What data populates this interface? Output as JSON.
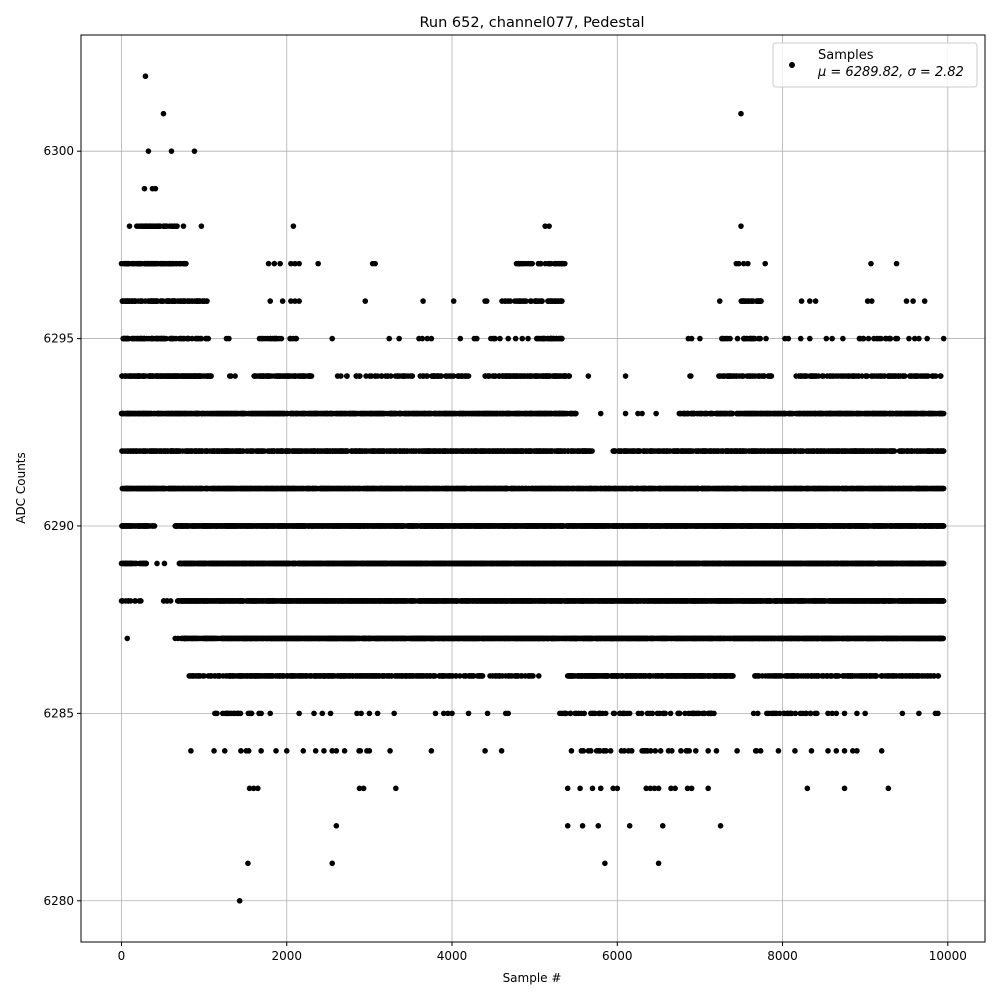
{
  "chart_data": {
    "type": "scatter",
    "title": "Run 652, channel077, Pedestal",
    "xlabel": "Sample #",
    "ylabel": "ADC Counts",
    "xlim": [
      -490,
      10450
    ],
    "ylim": [
      6278.9,
      6303.1
    ],
    "xticks": [
      0,
      2000,
      4000,
      6000,
      8000,
      10000
    ],
    "yticks": [
      6280,
      6285,
      6290,
      6295,
      6300
    ],
    "grid": true,
    "marker_color": "#000000",
    "grid_color": "#b0b0b0",
    "legend": {
      "position": "top-right",
      "label": "Samples",
      "stats": "μ = 6289.82, σ = 2.82"
    },
    "levels": [
      {
        "y": 6302,
        "ranges": [],
        "points": [
          290
        ]
      },
      {
        "y": 6301,
        "ranges": [],
        "points": [
          508,
          7497
        ]
      },
      {
        "y": 6300,
        "ranges": [],
        "points": [
          326,
          605,
          883
        ]
      },
      {
        "y": 6299,
        "ranges": [],
        "points": [
          278,
          375,
          411
        ]
      },
      {
        "y": 6298,
        "ranges": [
          [
            180,
            470,
            0.5
          ],
          [
            508,
            690,
            0.4
          ]
        ],
        "points": [
          97,
          750,
          967,
          2080,
          5127,
          5175,
          7497
        ]
      },
      {
        "y": 6297,
        "ranges": [
          [
            0,
            780,
            0.5
          ],
          [
            4760,
            5370,
            0.25
          ]
        ],
        "points": [
          1780,
          1850,
          1920,
          2050,
          2100,
          2150,
          2380,
          3040,
          3070,
          7440,
          7470,
          7530,
          7580,
          7790,
          9070,
          9380
        ]
      },
      {
        "y": 6296,
        "ranges": [
          [
            0,
            1050,
            0.4
          ],
          [
            4600,
            5350,
            0.3
          ],
          [
            7500,
            7750,
            0.3
          ]
        ],
        "points": [
          1800,
          1950,
          2050,
          2100,
          2150,
          2950,
          3650,
          4020,
          4400,
          4420,
          7240,
          8230,
          8330,
          8400,
          9030,
          9080,
          9500,
          9580,
          9720
        ]
      },
      {
        "y": 6295,
        "ranges": [
          [
            0,
            1050,
            0.35
          ],
          [
            1600,
            2150,
            0.2
          ],
          [
            5000,
            5330,
            0.3
          ],
          [
            7250,
            7750,
            0.15
          ],
          [
            8920,
            9450,
            0.15
          ]
        ],
        "points": [
          1270,
          1300,
          2550,
          3240,
          3360,
          3600,
          3640,
          3700,
          3750,
          4100,
          4270,
          4300,
          4470,
          4500,
          4520,
          4580,
          4680,
          4770,
          4850,
          4920,
          6860,
          6900,
          7000,
          7800,
          8030,
          8070,
          8220,
          8330,
          8530,
          8600,
          8730,
          9530,
          9600,
          9650,
          9750,
          9950
        ]
      },
      {
        "y": 6294,
        "ranges": [
          [
            0,
            1100,
            0.6
          ],
          [
            1250,
            1400,
            0.1
          ],
          [
            1600,
            2300,
            0.4
          ],
          [
            2600,
            3700,
            0.2
          ],
          [
            3750,
            4200,
            0.3
          ],
          [
            4400,
            5450,
            0.5
          ],
          [
            7200,
            7900,
            0.3
          ],
          [
            8100,
            9950,
            0.3
          ]
        ],
        "points": [
          5650,
          6100,
          6880,
          6890
        ]
      },
      {
        "y": 6293,
        "ranges": [
          [
            0,
            5500,
            0.6
          ],
          [
            6750,
            9950,
            0.6
          ]
        ],
        "points": [
          5800,
          6100,
          6250,
          6300,
          6470
        ]
      },
      {
        "y": 6292,
        "ranges": [
          [
            0,
            5700,
            0.5
          ],
          [
            5950,
            9950,
            0.5
          ]
        ],
        "points": []
      },
      {
        "y": 6291,
        "ranges": [
          [
            0,
            9950,
            0.7
          ]
        ],
        "points": []
      },
      {
        "y": 6290,
        "ranges": [
          [
            0,
            400,
            0.6
          ],
          [
            650,
            9950,
            0.7
          ]
        ],
        "points": []
      },
      {
        "y": 6289,
        "ranges": [
          [
            0,
            300,
            0.5
          ],
          [
            700,
            9950,
            0.8
          ]
        ],
        "points": [
          430,
          520
        ]
      },
      {
        "y": 6288,
        "ranges": [
          [
            0,
            250,
            0.3
          ],
          [
            500,
            600,
            0.2
          ],
          [
            680,
            9950,
            0.8
          ]
        ],
        "points": []
      },
      {
        "y": 6287,
        "ranges": [
          [
            650,
            1000,
            0.3
          ],
          [
            1000,
            9950,
            0.7
          ]
        ],
        "points": [
          70
        ]
      },
      {
        "y": 6286,
        "ranges": [
          [
            820,
            1300,
            0.3
          ],
          [
            1300,
            3600,
            0.5
          ],
          [
            3600,
            5000,
            0.3
          ],
          [
            5400,
            7400,
            0.6
          ],
          [
            7650,
            9900,
            0.35
          ]
        ],
        "points": [
          5050
        ]
      },
      {
        "y": 6285,
        "ranges": [
          [
            1100,
            1700,
            0.3
          ],
          [
            5300,
            7200,
            0.2
          ],
          [
            7800,
            8500,
            0.15
          ]
        ],
        "points": [
          1800,
          2150,
          2330,
          2430,
          2530,
          2850,
          2900,
          3000,
          3100,
          3300,
          3800,
          3900,
          3950,
          4000,
          4200,
          4430,
          4650,
          4680,
          7650,
          7700,
          8550,
          8600,
          8650,
          8750,
          8900,
          9000,
          9450,
          9650,
          9850,
          9880
        ]
      },
      {
        "y": 6284,
        "ranges": [
          [
            1400,
            1700,
            0.1
          ],
          [
            2800,
            3100,
            0.1
          ],
          [
            5400,
            6200,
            0.1
          ],
          [
            6300,
            6900,
            0.08
          ],
          [
            7650,
            7800,
            0.05
          ]
        ],
        "points": [
          840,
          1120,
          1250,
          1870,
          2000,
          2200,
          2350,
          2450,
          2550,
          2600,
          2700,
          3250,
          3750,
          4400,
          4600,
          6950,
          7100,
          7200,
          7450,
          7950,
          8150,
          8350,
          8550,
          8650,
          8750,
          8850,
          8900,
          9200
        ]
      },
      {
        "y": 6283,
        "ranges": [],
        "points": [
          1550,
          1600,
          1650,
          2880,
          2930,
          3320,
          5400,
          5550,
          5700,
          5800,
          5950,
          6000,
          6350,
          6400,
          6450,
          6500,
          6650,
          6700,
          6850,
          6900,
          7100,
          8300,
          8750,
          9280
        ]
      },
      {
        "y": 6282,
        "ranges": [],
        "points": [
          2600,
          5400,
          5580,
          5770,
          6150,
          6550,
          7250
        ]
      },
      {
        "y": 6281,
        "ranges": [],
        "points": [
          1530,
          2550,
          5850,
          6500
        ]
      },
      {
        "y": 6280,
        "ranges": [],
        "points": [
          1430
        ]
      }
    ]
  }
}
